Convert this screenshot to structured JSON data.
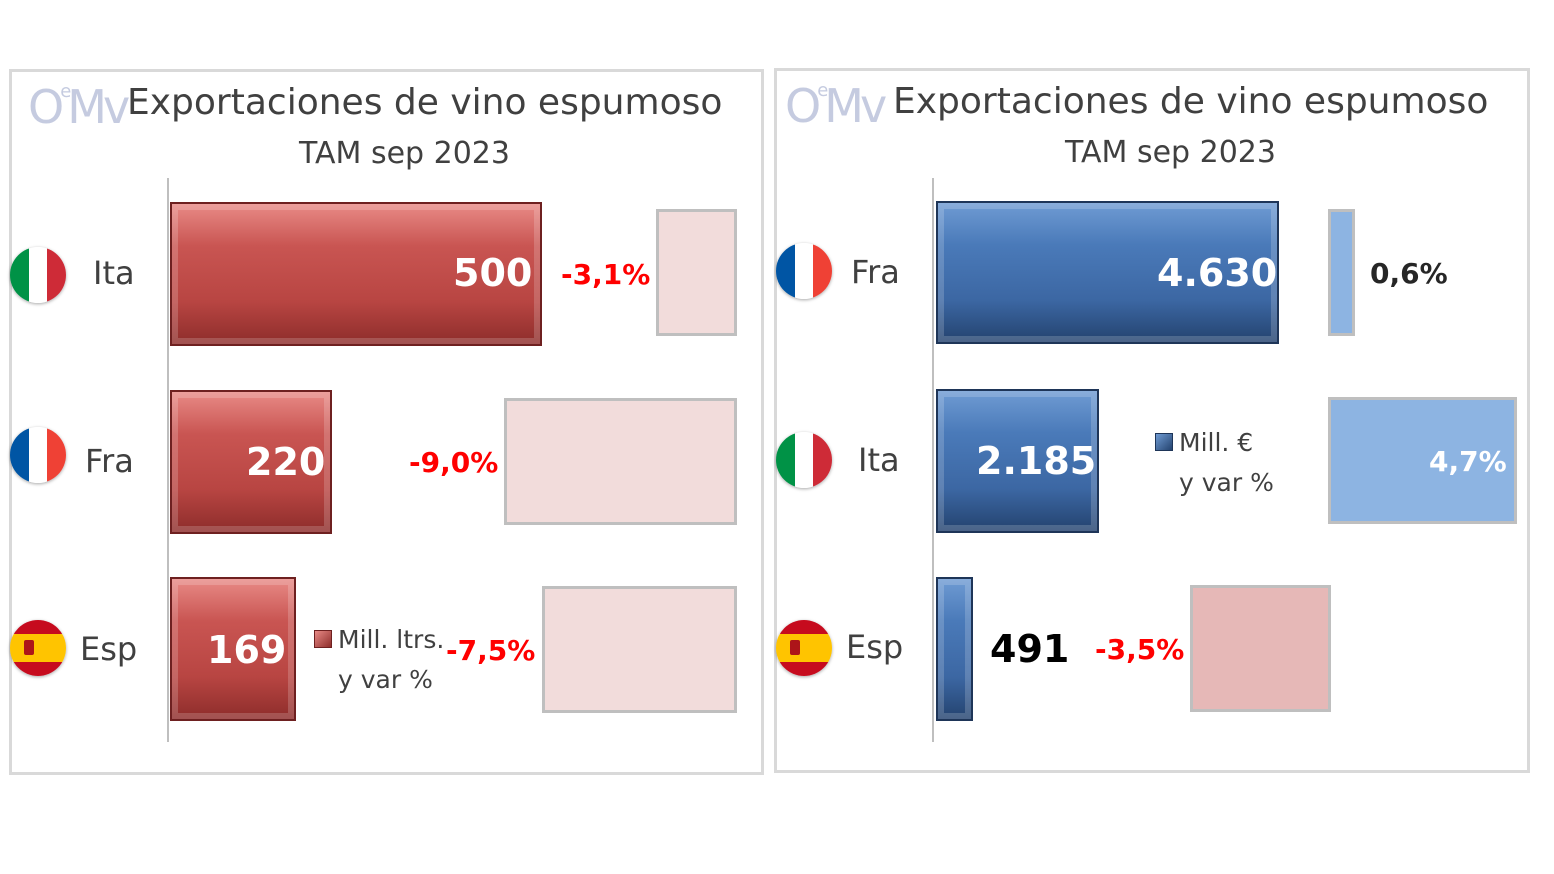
{
  "chart_data": [
    {
      "type": "bar",
      "orientation": "horizontal",
      "title": "Exportaciones de vino espumoso",
      "subtitle": "TAM sep 2023",
      "logo": "OeMv",
      "categories": [
        "Ita",
        "Fra",
        "Esp"
      ],
      "series": [
        {
          "name": "Mill. ltrs.",
          "values": [
            500,
            220,
            169
          ],
          "labels": [
            "500",
            "220",
            "169"
          ]
        },
        {
          "name": "y var %",
          "values": [
            -3.1,
            -9.0,
            -7.5
          ],
          "labels": [
            "-3,1%",
            "-9,0%",
            "-7,5%"
          ]
        }
      ],
      "legend": {
        "line1": "Mill. ltrs.",
        "line2": "y var %",
        "placement": "bottom-center"
      },
      "colors": {
        "bar": "#b84542",
        "var_box": "#f2dcdb",
        "negative_text": "#ff0000"
      }
    },
    {
      "type": "bar",
      "orientation": "horizontal",
      "title": "Exportaciones de vino espumoso",
      "subtitle": "TAM sep 2023",
      "logo": "OeMv",
      "categories": [
        "Fra",
        "Ita",
        "Esp"
      ],
      "series": [
        {
          "name": "Mill. €",
          "values": [
            4630,
            2185,
            491
          ],
          "labels": [
            "4.630",
            "2.185",
            "491"
          ]
        },
        {
          "name": "y var %",
          "values": [
            0.6,
            4.7,
            -3.5
          ],
          "labels": [
            "0,6%",
            "4,7%",
            "-3,5%"
          ]
        }
      ],
      "legend": {
        "line1": "Mill. €",
        "line2": "y var %",
        "placement": "center"
      },
      "colors": {
        "bar": "#3c67a3",
        "var_box_positive": "#8db4e2",
        "var_box_negative": "#e6b8b7",
        "negative_text": "#ff0000",
        "positive_text": "#262626"
      }
    }
  ]
}
